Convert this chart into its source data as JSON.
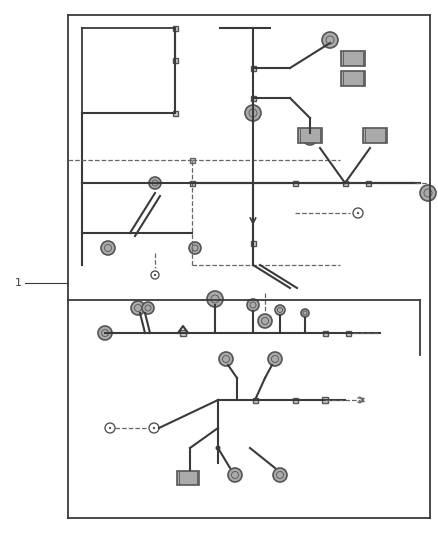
{
  "bg_color": "#ffffff",
  "lc": "#3a3a3a",
  "dc": "#666666",
  "figsize": [
    4.38,
    5.33
  ],
  "dpi": 100,
  "label_1": "1"
}
